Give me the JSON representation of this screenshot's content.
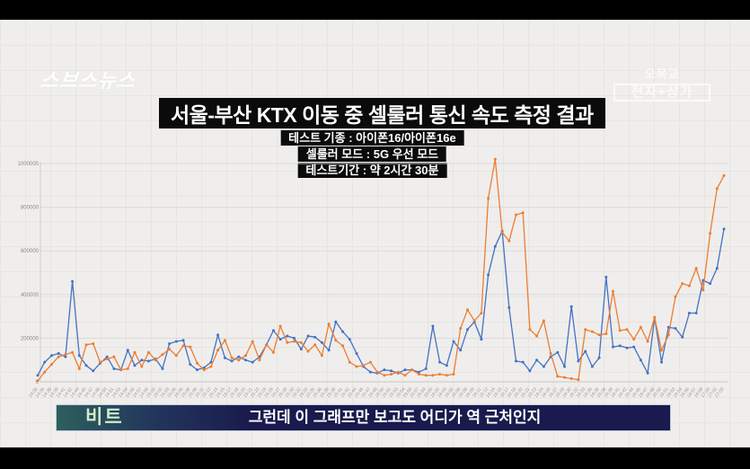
{
  "broadcast": {
    "channel_logo": "스브스뉴스",
    "watermark_line1": "오목교",
    "watermark_line2": "전자+상가",
    "caption_label": "비트",
    "caption_text": "그런데 이 그래프만 보고도 어디가 역 근처인지"
  },
  "header": {
    "title": "서울-부산 KTX 이동 중 셀룰러 통신 속도 측정 결과",
    "info_lines": [
      "테스트 기종 : 아이폰16/아이폰16e",
      "셀룰러 모드 : 5G 우선 모드",
      "테스트기간 : 약 2시간 30분"
    ]
  },
  "colors": {
    "series_blue": "#4472c4",
    "series_orange": "#ed7d31",
    "background": "#efeeec",
    "caption_navy": "#191a4d",
    "caption_teal": "#2d5f5d",
    "caption_label_green": "#cfeccb",
    "title_bar_black": "#0b0b0b",
    "gridline": "#dcdad7",
    "axis_text": "#8a8a8a"
  },
  "chart_data": {
    "type": "line",
    "title": "",
    "xlabel": "",
    "ylabel": "",
    "ylim": [
      0,
      1050000
    ],
    "yticks": [
      0,
      200000,
      400000,
      600000,
      800000,
      1000000
    ],
    "grid": true,
    "legend": "none",
    "markers": true,
    "x": [
      "14:35",
      "14:36",
      "14:38",
      "14:39",
      "14:41",
      "14:42",
      "14:44",
      "14:45",
      "14:47",
      "14:48",
      "14:50",
      "14:51",
      "14:53",
      "14:54",
      "14:56",
      "14:57",
      "14:59",
      "15:00",
      "15:02",
      "15:03",
      "15:05",
      "15:06",
      "15:08",
      "15:09",
      "15:11",
      "15:12",
      "15:14",
      "15:15",
      "15:17",
      "15:18",
      "15:20",
      "15:21",
      "15:23",
      "15:24",
      "15:26",
      "15:27",
      "15:29",
      "15:30",
      "15:32",
      "15:33",
      "15:35",
      "15:36",
      "15:38",
      "15:39",
      "15:41",
      "15:42",
      "15:44",
      "15:45",
      "15:47",
      "15:48",
      "15:50",
      "15:51",
      "15:53",
      "15:54",
      "15:56",
      "15:57",
      "15:59",
      "16:00",
      "16:02",
      "16:03",
      "16:05",
      "16:06",
      "16:08",
      "16:09",
      "16:11",
      "16:12",
      "16:14",
      "16:15",
      "16:17",
      "16:18",
      "16:20",
      "16:21",
      "16:23",
      "16:24",
      "16:26",
      "16:27",
      "16:29",
      "16:30",
      "16:32",
      "16:33",
      "16:35",
      "16:36",
      "16:38",
      "16:39",
      "16:41",
      "16:42",
      "16:44",
      "16:45",
      "16:47",
      "16:48",
      "16:50",
      "16:51",
      "16:53",
      "16:54",
      "16:56",
      "16:57",
      "16:59",
      "17:00",
      "17:02",
      "17:03"
    ],
    "series": [
      {
        "name": "series-blue",
        "color": "#4472c4",
        "values": [
          30000,
          90000,
          120000,
          130000,
          115000,
          460000,
          120000,
          75000,
          50000,
          85000,
          115000,
          60000,
          55000,
          145000,
          75000,
          100000,
          95000,
          105000,
          60000,
          175000,
          185000,
          190000,
          80000,
          55000,
          65000,
          90000,
          215000,
          110000,
          95000,
          115000,
          100000,
          90000,
          115000,
          170000,
          235000,
          195000,
          210000,
          200000,
          150000,
          210000,
          205000,
          180000,
          145000,
          275000,
          230000,
          195000,
          130000,
          70000,
          45000,
          40000,
          55000,
          50000,
          40000,
          55000,
          55000,
          45000,
          60000,
          255000,
          90000,
          75000,
          185000,
          145000,
          240000,
          275000,
          195000,
          490000,
          620000,
          690000,
          340000,
          95000,
          90000,
          50000,
          100000,
          70000,
          115000,
          135000,
          70000,
          345000,
          95000,
          140000,
          70000,
          110000,
          480000,
          160000,
          165000,
          155000,
          160000,
          100000,
          40000,
          295000,
          90000,
          250000,
          245000,
          205000,
          315000,
          315000,
          465000,
          450000,
          520000,
          700000
        ]
      },
      {
        "name": "series-orange",
        "color": "#ed7d31",
        "values": [
          5000,
          45000,
          80000,
          115000,
          125000,
          135000,
          60000,
          170000,
          175000,
          90000,
          105000,
          115000,
          55000,
          60000,
          135000,
          70000,
          135000,
          100000,
          125000,
          150000,
          120000,
          165000,
          160000,
          85000,
          55000,
          70000,
          145000,
          190000,
          110000,
          100000,
          120000,
          185000,
          100000,
          170000,
          135000,
          255000,
          180000,
          185000,
          180000,
          140000,
          170000,
          120000,
          265000,
          190000,
          165000,
          90000,
          70000,
          75000,
          90000,
          45000,
          30000,
          35000,
          45000,
          30000,
          55000,
          35000,
          30000,
          30000,
          35000,
          30000,
          35000,
          245000,
          330000,
          280000,
          315000,
          840000,
          1020000,
          685000,
          645000,
          765000,
          775000,
          240000,
          210000,
          280000,
          130000,
          25000,
          20000,
          15000,
          10000,
          240000,
          230000,
          215000,
          220000,
          415000,
          235000,
          240000,
          195000,
          250000,
          185000,
          295000,
          145000,
          215000,
          390000,
          450000,
          440000,
          520000,
          420000,
          680000,
          885000,
          945000
        ]
      }
    ]
  }
}
